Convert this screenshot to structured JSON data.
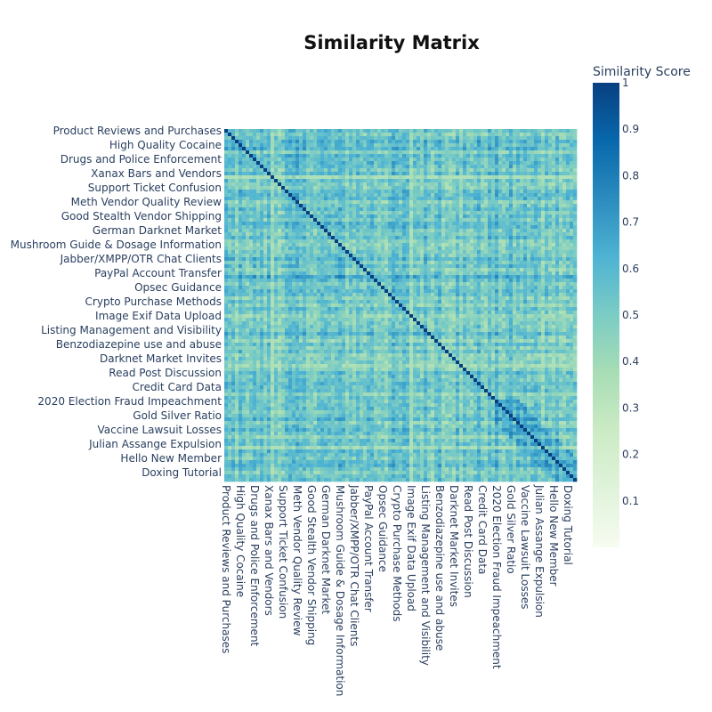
{
  "chart_data": {
    "type": "heatmap",
    "title": "Similarity Matrix",
    "colorbar": {
      "title": "Similarity Score",
      "range": [
        0,
        1
      ],
      "ticks": [
        0.1,
        0.2,
        0.3,
        0.4,
        0.5,
        0.6,
        0.7,
        0.8,
        0.9,
        1
      ],
      "tick_labels": [
        "0.1",
        "0.2",
        "0.3",
        "0.4",
        "0.5",
        "0.6",
        "0.7",
        "0.8",
        "0.9",
        "1"
      ],
      "colorscale": [
        "#f7fcf0",
        "#e0f3db",
        "#ccebc5",
        "#a8ddb5",
        "#7bccc4",
        "#4eb3d3",
        "#2b8cbe",
        "#0868ac",
        "#084081"
      ]
    },
    "labeled_topics": [
      "Product Reviews and Purchases",
      "High Quality Cocaine",
      "Drugs and Police Enforcement",
      "Xanax Bars and Vendors",
      "Support Ticket Confusion",
      "Meth Vendor Quality Review",
      "Good Stealth Vendor Shipping",
      "German Darknet Market",
      "Mushroom Guide & Dosage Information",
      "Jabber/XMPP/OTR Chat Clients",
      "PayPal Account Transfer",
      "Opsec Guidance",
      "Crypto Purchase Methods",
      "Image Exif Data Upload",
      "Listing Management and Visibility",
      "Benzodiazepine use and abuse",
      "Darknet Market Invites",
      "Read Post Discussion",
      "Credit Card Data",
      "2020 Election Fraud Impeachment",
      "Gold Silver Ratio",
      "Vaccine Lawsuit Losses",
      "Julian Assange Expulsion",
      "Hello New Member",
      "Doxing Tutorial"
    ],
    "n_topics": 99,
    "label_every": 4,
    "diagonal_value": 1,
    "typical_value_range": [
      0.35,
      0.75
    ]
  }
}
